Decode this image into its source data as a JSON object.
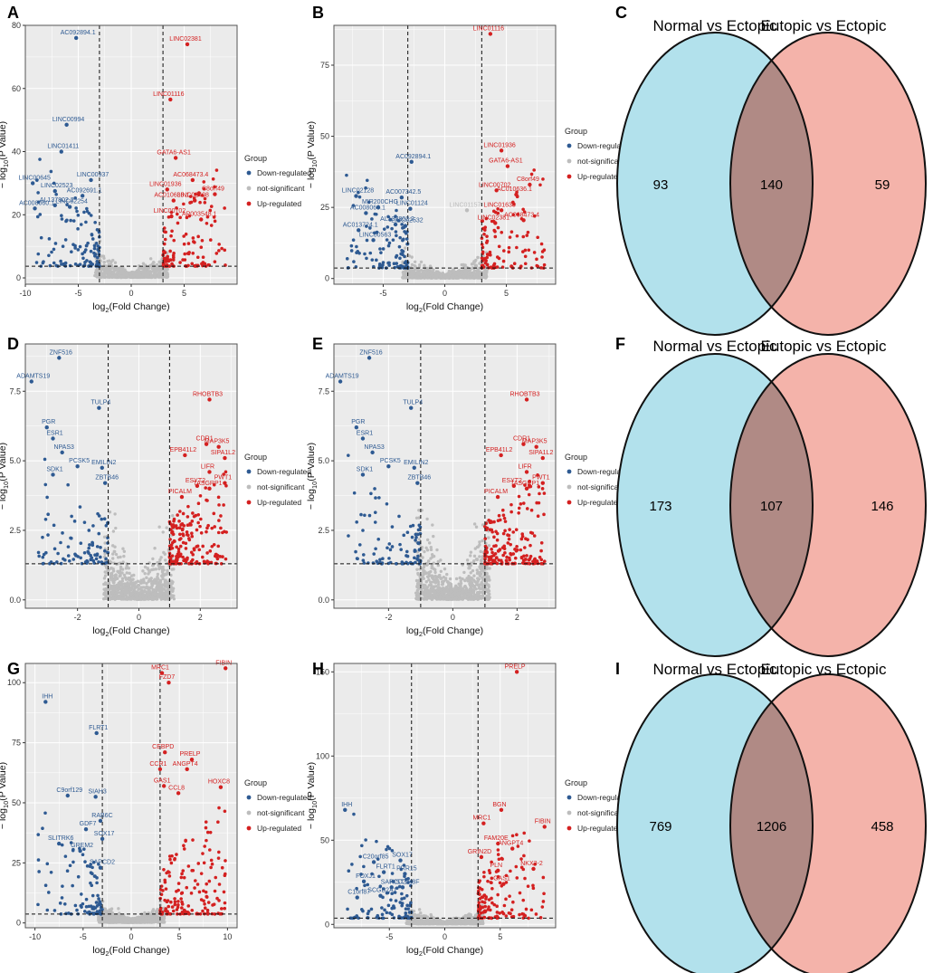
{
  "colors": {
    "down": "#2E5A92",
    "ns": "#BDBDBD",
    "up": "#D42020",
    "panel_bg": "#EBEBEB",
    "grid": "#FFFFFF",
    "venn_left": "#B2E1EC",
    "venn_right": "#F4B3AA",
    "venn_overlap": "#B08A85"
  },
  "common": {
    "xlabel_main": "log",
    "xlabel_sub": "2",
    "xlabel_rest": "(Fold Change)",
    "ylabel_pre": "− log",
    "ylabel_sub": "10",
    "ylabel_rest": "(P Value)",
    "legend_title": "Group",
    "legend_items": [
      "Down-regulated",
      "not-significant",
      "Up-regulated"
    ]
  },
  "venns": [
    {
      "label": "C",
      "left_title": "Normal vs Ectopic",
      "right_title": "Eutopic vs Ectopic",
      "left_only": "93",
      "overlap": "140",
      "right_only": "59"
    },
    {
      "label": "F",
      "left_title": "Normal vs Ectopic",
      "right_title": "Eutopic vs Ectopic",
      "left_only": "173",
      "overlap": "107",
      "right_only": "146"
    },
    {
      "label": "I",
      "left_title": "Normal vs Ectopic",
      "right_title": "Eutopic vs Ectopic",
      "left_only": "769",
      "overlap": "1206",
      "right_only": "458"
    }
  ],
  "chart_data": [
    {
      "type": "scatter",
      "label": "A",
      "xlim": [
        -10,
        10
      ],
      "ylim": [
        -2,
        80
      ],
      "xticks": [
        -10,
        -5,
        0,
        5
      ],
      "yticks": [
        0,
        20,
        40,
        60,
        80
      ],
      "vlines": [
        -3,
        3
      ],
      "hline": 3.7,
      "genes": [
        {
          "n": "AC092894.1",
          "x": -5.2,
          "y": 76,
          "g": "down"
        },
        {
          "n": "LINC00994",
          "x": -6.1,
          "y": 48.5,
          "g": "down"
        },
        {
          "n": "LINC01411",
          "x": -6.6,
          "y": 40,
          "g": "down"
        },
        {
          "n": "LINC00645",
          "x": -9.3,
          "y": 30,
          "g": "down"
        },
        {
          "n": "LINC00937",
          "x": -3.8,
          "y": 31,
          "g": "down"
        },
        {
          "n": "LINC02523",
          "x": -7.2,
          "y": 27.5,
          "g": "down"
        },
        {
          "n": "AC092691.1",
          "x": -4.6,
          "y": 26,
          "g": "down"
        },
        {
          "n": "AL137802.2",
          "x": -7.2,
          "y": 23,
          "g": "down"
        },
        {
          "n": "LINC02254",
          "x": -5.8,
          "y": 22.5,
          "g": "down"
        },
        {
          "n": "AC008060.1",
          "x": -9.1,
          "y": 22,
          "g": "down"
        },
        {
          "n": "LINC02381",
          "x": 5.3,
          "y": 74,
          "g": "up"
        },
        {
          "n": "LINC01116",
          "x": 3.7,
          "y": 56.5,
          "g": "up"
        },
        {
          "n": "GATA6-AS1",
          "x": 4.2,
          "y": 38,
          "g": "up"
        },
        {
          "n": "AC068473.4",
          "x": 5.8,
          "y": 31,
          "g": "up"
        },
        {
          "n": "LINC01936",
          "x": 3.4,
          "y": 28,
          "g": "up"
        },
        {
          "n": "C8orf49",
          "x": 7.9,
          "y": 26.5,
          "g": "up"
        },
        {
          "n": "AC010636.1",
          "x": 4.0,
          "y": 24.5,
          "g": "up"
        },
        {
          "n": "LINC02408",
          "x": 6.0,
          "y": 24.5,
          "g": "up"
        },
        {
          "n": "LINC00702",
          "x": 3.8,
          "y": 19.5,
          "g": "up"
        },
        {
          "n": "AP003548.1",
          "x": 6.6,
          "y": 18.5,
          "g": "up"
        }
      ],
      "n_down": 110,
      "n_up": 120,
      "n_ns": 650,
      "seed": 11
    },
    {
      "type": "scatter",
      "label": "B",
      "xlim": [
        -9,
        9
      ],
      "ylim": [
        -2,
        89
      ],
      "xticks": [
        -5,
        0,
        5
      ],
      "yticks": [
        0,
        25,
        50,
        75
      ],
      "vlines": [
        -3,
        3
      ],
      "hline": 3.7,
      "genes": [
        {
          "n": "LINC01116",
          "x": 3.7,
          "y": 86,
          "g": "up"
        },
        {
          "n": "LINC01936",
          "x": 4.6,
          "y": 45,
          "g": "up"
        },
        {
          "n": "GATA6-AS1",
          "x": 5.1,
          "y": 39.5,
          "g": "up"
        },
        {
          "n": "C8orf49",
          "x": 6.9,
          "y": 33,
          "g": "up"
        },
        {
          "n": "LINC00702",
          "x": 4.2,
          "y": 31,
          "g": "up"
        },
        {
          "n": "AC010636.1",
          "x": 5.8,
          "y": 29.5,
          "g": "up"
        },
        {
          "n": "LINC01638",
          "x": 4.6,
          "y": 24,
          "g": "up"
        },
        {
          "n": "LINC02381",
          "x": 4.1,
          "y": 19.5,
          "g": "up"
        },
        {
          "n": "AC068473.4",
          "x": 6.4,
          "y": 20.5,
          "g": "up"
        },
        {
          "n": "AC092894.1",
          "x": -2.7,
          "y": 41,
          "g": "down"
        },
        {
          "n": "LINC02128",
          "x": -7.2,
          "y": 29,
          "g": "down"
        },
        {
          "n": "AC007342.5",
          "x": -3.5,
          "y": 28.5,
          "g": "down"
        },
        {
          "n": "MIR200CHG",
          "x": -5.4,
          "y": 25,
          "g": "down"
        },
        {
          "n": "LINC01124",
          "x": -2.8,
          "y": 24.5,
          "g": "down"
        },
        {
          "n": "AC008060.1",
          "x": -6.4,
          "y": 23,
          "g": "down"
        },
        {
          "n": "AL137802.2",
          "x": -4.0,
          "y": 19,
          "g": "down"
        },
        {
          "n": "LINC02532",
          "x": -3.2,
          "y": 18.5,
          "g": "down"
        },
        {
          "n": "AC013724.1",
          "x": -7.0,
          "y": 17,
          "g": "down"
        },
        {
          "n": "LINC00563",
          "x": -5.8,
          "y": 13.5,
          "g": "down"
        },
        {
          "n": "LINC01157",
          "x": 1.8,
          "y": 24,
          "g": "ns"
        }
      ],
      "n_down": 110,
      "n_up": 110,
      "n_ns": 700,
      "seed": 23
    },
    {
      "type": "scatter",
      "label": "D",
      "xlim": [
        -3.7,
        3.2
      ],
      "ylim": [
        -0.3,
        9.2
      ],
      "xticks": [
        -2,
        0,
        2
      ],
      "yticks": [
        0.0,
        2.5,
        5.0,
        7.5
      ],
      "vlines": [
        -1,
        1
      ],
      "hline": 1.3,
      "genes": [
        {
          "n": "ZNF516",
          "x": -2.6,
          "y": 8.7,
          "g": "down"
        },
        {
          "n": "ADAMTS19",
          "x": -3.5,
          "y": 7.85,
          "g": "down"
        },
        {
          "n": "TULP4",
          "x": -1.3,
          "y": 6.9,
          "g": "down"
        },
        {
          "n": "PGR",
          "x": -3.0,
          "y": 6.2,
          "g": "down"
        },
        {
          "n": "ESR1",
          "x": -2.8,
          "y": 5.8,
          "g": "down"
        },
        {
          "n": "NPAS3",
          "x": -2.5,
          "y": 5.3,
          "g": "down"
        },
        {
          "n": "PCSK5",
          "x": -2.0,
          "y": 4.8,
          "g": "down"
        },
        {
          "n": "EMILIN2",
          "x": -1.2,
          "y": 4.75,
          "g": "down"
        },
        {
          "n": "SDK1",
          "x": -2.8,
          "y": 4.5,
          "g": "down"
        },
        {
          "n": "ZBTB46",
          "x": -1.1,
          "y": 4.2,
          "g": "down"
        },
        {
          "n": "RHOBTB3",
          "x": 2.3,
          "y": 7.2,
          "g": "up"
        },
        {
          "n": "CDR1",
          "x": 2.2,
          "y": 5.6,
          "g": "up"
        },
        {
          "n": "MAP3K5",
          "x": 2.6,
          "y": 5.5,
          "g": "up"
        },
        {
          "n": "EPB41L2",
          "x": 1.5,
          "y": 5.2,
          "g": "up"
        },
        {
          "n": "SIPA1L2",
          "x": 2.8,
          "y": 5.1,
          "g": "up"
        },
        {
          "n": "LIFR",
          "x": 2.3,
          "y": 4.6,
          "g": "up"
        },
        {
          "n": "ESYT2",
          "x": 1.9,
          "y": 4.1,
          "g": "up"
        },
        {
          "n": "TASGRP1",
          "x": 2.3,
          "y": 4.0,
          "g": "up"
        },
        {
          "n": "PWT1",
          "x": 2.8,
          "y": 4.2,
          "g": "up"
        },
        {
          "n": "PICALM",
          "x": 1.4,
          "y": 3.7,
          "g": "up"
        }
      ],
      "n_down": 90,
      "n_up": 180,
      "n_ns": 800,
      "seed": 37
    },
    {
      "type": "scatter",
      "label": "E",
      "xlim": [
        -3.7,
        3.2
      ],
      "ylim": [
        -0.3,
        9.2
      ],
      "xticks": [
        -2,
        0,
        2
      ],
      "yticks": [
        0.0,
        2.5,
        5.0,
        7.5
      ],
      "vlines": [
        -1,
        1
      ],
      "hline": 1.3,
      "genes": [
        {
          "n": "ZNF516",
          "x": -2.6,
          "y": 8.7,
          "g": "down"
        },
        {
          "n": "ADAMTS19",
          "x": -3.5,
          "y": 7.85,
          "g": "down"
        },
        {
          "n": "TULP4",
          "x": -1.3,
          "y": 6.9,
          "g": "down"
        },
        {
          "n": "PGR",
          "x": -3.0,
          "y": 6.2,
          "g": "down"
        },
        {
          "n": "ESR1",
          "x": -2.8,
          "y": 5.8,
          "g": "down"
        },
        {
          "n": "NPAS3",
          "x": -2.5,
          "y": 5.3,
          "g": "down"
        },
        {
          "n": "PCSK5",
          "x": -2.0,
          "y": 4.8,
          "g": "down"
        },
        {
          "n": "EMILIN2",
          "x": -1.2,
          "y": 4.75,
          "g": "down"
        },
        {
          "n": "SDK1",
          "x": -2.8,
          "y": 4.5,
          "g": "down"
        },
        {
          "n": "ZBTB46",
          "x": -1.1,
          "y": 4.2,
          "g": "down"
        },
        {
          "n": "RHOBTB3",
          "x": 2.3,
          "y": 7.2,
          "g": "up"
        },
        {
          "n": "CDR1",
          "x": 2.2,
          "y": 5.6,
          "g": "up"
        },
        {
          "n": "MAP3K5",
          "x": 2.6,
          "y": 5.5,
          "g": "up"
        },
        {
          "n": "EPB41L2",
          "x": 1.5,
          "y": 5.2,
          "g": "up"
        },
        {
          "n": "SIPA1L2",
          "x": 2.8,
          "y": 5.1,
          "g": "up"
        },
        {
          "n": "LIFR",
          "x": 2.3,
          "y": 4.6,
          "g": "up"
        },
        {
          "n": "ESYT2",
          "x": 1.9,
          "y": 4.1,
          "g": "up"
        },
        {
          "n": "TASGRP1",
          "x": 2.3,
          "y": 4.0,
          "g": "up"
        },
        {
          "n": "PWT1",
          "x": 2.8,
          "y": 4.2,
          "g": "up"
        },
        {
          "n": "PICALM",
          "x": 1.4,
          "y": 3.7,
          "g": "up"
        }
      ],
      "n_down": 90,
      "n_up": 180,
      "n_ns": 800,
      "seed": 41
    },
    {
      "type": "scatter",
      "label": "G",
      "xlim": [
        -11,
        11
      ],
      "ylim": [
        -2,
        108
      ],
      "xticks": [
        -10,
        -5,
        0,
        5,
        10
      ],
      "yticks": [
        0,
        25,
        50,
        75,
        100
      ],
      "vlines": [
        -3,
        3
      ],
      "hline": 3.7,
      "genes": [
        {
          "n": "IHH",
          "x": -8.9,
          "y": 92,
          "g": "down"
        },
        {
          "n": "FLRT1",
          "x": -3.6,
          "y": 79,
          "g": "down"
        },
        {
          "n": "SIAH3",
          "x": -3.7,
          "y": 52.5,
          "g": "down"
        },
        {
          "n": "C9orf129",
          "x": -6.6,
          "y": 53,
          "g": "down"
        },
        {
          "n": "RAB6C",
          "x": -3.2,
          "y": 42.5,
          "g": "down"
        },
        {
          "n": "GDF7",
          "x": -4.7,
          "y": 39,
          "g": "down"
        },
        {
          "n": "SOX17",
          "x": -3.0,
          "y": 35,
          "g": "down"
        },
        {
          "n": "SLITRK6",
          "x": -7.5,
          "y": 33,
          "g": "down"
        },
        {
          "n": "GREM2",
          "x": -5.3,
          "y": 30,
          "g": "down"
        },
        {
          "n": "SAPCD2",
          "x": -3.2,
          "y": 23,
          "g": "down"
        },
        {
          "n": "MRC1",
          "x": 3.2,
          "y": 104,
          "g": "up"
        },
        {
          "n": "FIBIN",
          "x": 9.8,
          "y": 106,
          "g": "up"
        },
        {
          "n": "FZD7",
          "x": 3.9,
          "y": 100,
          "g": "up"
        },
        {
          "n": "CEBPD",
          "x": 3.5,
          "y": 71,
          "g": "up"
        },
        {
          "n": "PRELP",
          "x": 6.3,
          "y": 68,
          "g": "up"
        },
        {
          "n": "CCR1",
          "x": 3.0,
          "y": 64,
          "g": "up"
        },
        {
          "n": "ANGPT4",
          "x": 5.8,
          "y": 64,
          "g": "up"
        },
        {
          "n": "GAS1",
          "x": 3.4,
          "y": 57,
          "g": "up"
        },
        {
          "n": "HOXC8",
          "x": 9.3,
          "y": 56.5,
          "g": "up"
        },
        {
          "n": "CCL8",
          "x": 4.9,
          "y": 54,
          "g": "up"
        }
      ],
      "n_down": 90,
      "n_up": 160,
      "n_ns": 850,
      "seed": 53
    },
    {
      "type": "scatter",
      "label": "H",
      "xlim": [
        -10,
        10
      ],
      "ylim": [
        -2,
        155
      ],
      "xticks": [
        -5,
        0,
        5
      ],
      "yticks": [
        0,
        50,
        100,
        150
      ],
      "vlines": [
        -3,
        3
      ],
      "hline": 3.7,
      "genes": [
        {
          "n": "PRELP",
          "x": 6.5,
          "y": 150,
          "g": "up"
        },
        {
          "n": "BGN",
          "x": 5.1,
          "y": 68,
          "g": "up"
        },
        {
          "n": "FIBIN",
          "x": 9.0,
          "y": 58,
          "g": "up"
        },
        {
          "n": "MRC1",
          "x": 3.5,
          "y": 60,
          "g": "up"
        },
        {
          "n": "FAM20E",
          "x": 4.8,
          "y": 48,
          "g": "up"
        },
        {
          "n": "ANGPT4",
          "x": 6.1,
          "y": 45,
          "g": "up"
        },
        {
          "n": "GRIN2D",
          "x": 3.3,
          "y": 40,
          "g": "up"
        },
        {
          "n": "PLN",
          "x": 4.8,
          "y": 32,
          "g": "up"
        },
        {
          "n": "NKX3-2",
          "x": 8.0,
          "y": 33,
          "g": "up"
        },
        {
          "n": "GAS1",
          "x": 5.3,
          "y": 24,
          "g": "up"
        },
        {
          "n": "IHH",
          "x": -9.0,
          "y": 68,
          "g": "down"
        },
        {
          "n": "C20orf85",
          "x": -6.4,
          "y": 37,
          "g": "down"
        },
        {
          "n": "SOX17",
          "x": -4.0,
          "y": 38,
          "g": "down"
        },
        {
          "n": "FLRT1",
          "x": -5.5,
          "y": 31,
          "g": "down"
        },
        {
          "n": "PRR15",
          "x": -3.6,
          "y": 30,
          "g": "down"
        },
        {
          "n": "FOXJ1",
          "x": -7.3,
          "y": 25.5,
          "g": "down"
        },
        {
          "n": "SAPCD2",
          "x": -4.8,
          "y": 22,
          "g": "down"
        },
        {
          "n": "HIST1H3F",
          "x": -3.8,
          "y": 22,
          "g": "down"
        },
        {
          "n": "C1orf87",
          "x": -7.9,
          "y": 16,
          "g": "down"
        },
        {
          "n": "SCGB2A1",
          "x": -5.8,
          "y": 17,
          "g": "down"
        }
      ],
      "n_down": 100,
      "n_up": 130,
      "n_ns": 900,
      "seed": 67
    }
  ]
}
